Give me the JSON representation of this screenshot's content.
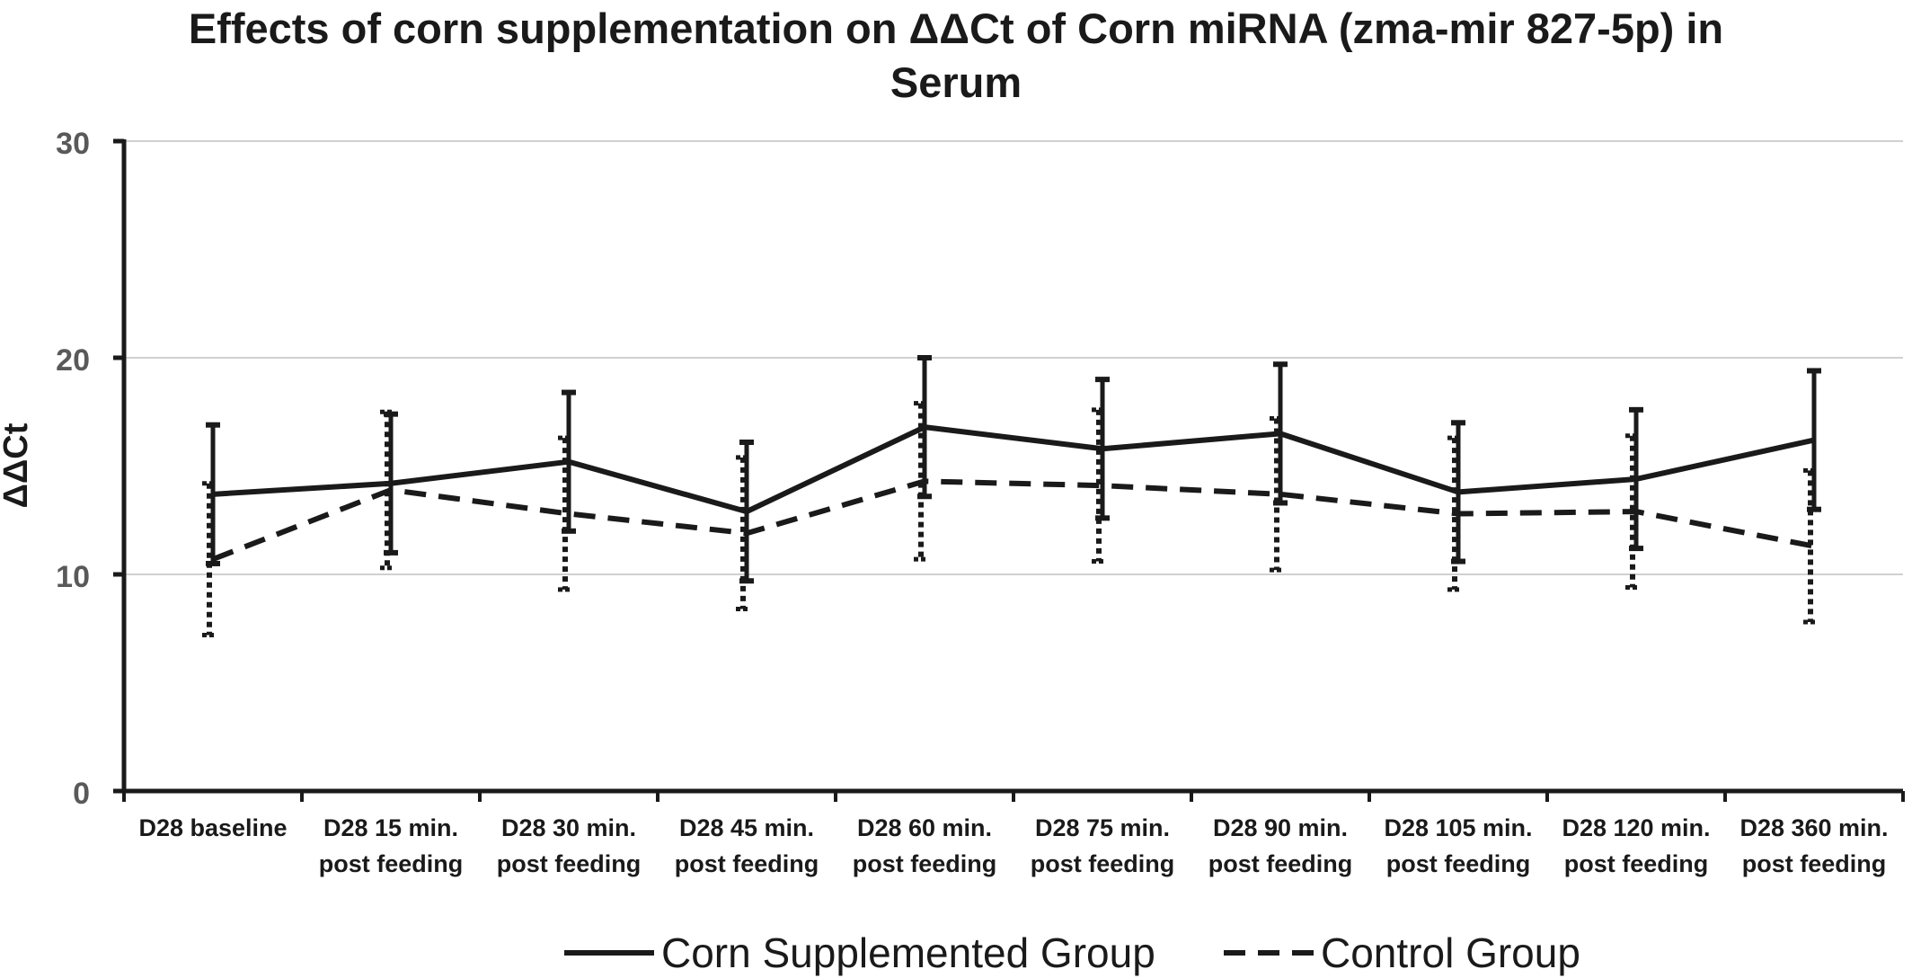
{
  "chart_data": {
    "type": "line",
    "title_line1": "Effects of corn supplementation on ΔΔCt of Corn miRNA (zma-mir 827-5p)  in",
    "title_line2": "Serum",
    "ylabel": "ΔΔCt",
    "xlabel": "",
    "ylim": [
      0,
      30
    ],
    "yticks": [
      "0",
      "10",
      "20",
      "30"
    ],
    "grid": "horizontal",
    "legend_placement": "bottom-center",
    "categories": [
      [
        "D28 baseline"
      ],
      [
        "D28 15 min.",
        "post feeding"
      ],
      [
        "D28 30 min.",
        "post feeding"
      ],
      [
        "D28 45 min.",
        "post feeding"
      ],
      [
        "D28 60 min.",
        "post feeding"
      ],
      [
        "D28 75 min.",
        "post feeding"
      ],
      [
        "D28 90 min.",
        "post feeding"
      ],
      [
        "D28 105 min.",
        "post feeding"
      ],
      [
        "D28 120 min.",
        "post feeding"
      ],
      [
        "D28 360 min.",
        "post feeding"
      ]
    ],
    "series": [
      {
        "name": "Corn Supplemented Group",
        "style": "solid",
        "values": [
          13.7,
          14.2,
          15.2,
          12.9,
          16.8,
          15.8,
          16.5,
          13.8,
          14.4,
          16.2
        ],
        "error": [
          3.2,
          3.2,
          3.2,
          3.2,
          3.2,
          3.2,
          3.2,
          3.2,
          3.2,
          3.2
        ]
      },
      {
        "name": "Control Group",
        "style": "dashed",
        "values": [
          10.7,
          13.9,
          12.8,
          11.9,
          14.3,
          14.1,
          13.7,
          12.8,
          12.9,
          11.3
        ],
        "error": [
          3.5,
          3.6,
          3.5,
          3.5,
          3.6,
          3.5,
          3.5,
          3.5,
          3.5,
          3.5
        ]
      }
    ],
    "colors": {
      "line": "#1a1a1a",
      "grid": "#d0d0d0",
      "tick_text": "#595959"
    }
  }
}
